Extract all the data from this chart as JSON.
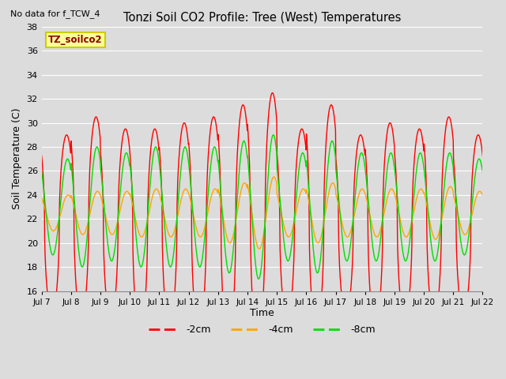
{
  "title": "Tonzi Soil CO2 Profile: Tree (West) Temperatures",
  "subtitle": "No data for f_TCW_4",
  "ylabel": "Soil Temperature (C)",
  "xlabel": "Time",
  "legend_label": "TZ_soilco2",
  "ylim": [
    16,
    38
  ],
  "yticks": [
    16,
    18,
    20,
    22,
    24,
    26,
    28,
    30,
    32,
    34,
    36,
    38
  ],
  "xtick_labels": [
    "Jul 7",
    "Jul 8",
    "Jul 9",
    "Jul 10",
    "Jul 11",
    "Jul 12",
    "Jul 13",
    "Jul 14",
    "Jul 15",
    "Jul 16",
    "Jul 17",
    "Jul 18",
    "Jul 19",
    "Jul 20",
    "Jul 21",
    "Jul 22"
  ],
  "series": {
    "-2cm": {
      "color": "#FF0000",
      "linewidth": 1.0
    },
    "-4cm": {
      "color": "#FFA500",
      "linewidth": 1.0
    },
    "-8cm": {
      "color": "#00DD00",
      "linewidth": 1.0
    }
  },
  "background_color": "#DCDCDC",
  "plot_bg_color": "#DCDCDC",
  "grid_color": "#FFFFFF",
  "legend_box_color": "#FFFF99",
  "legend_box_edge": "#CCCC00",
  "figsize": [
    6.4,
    4.8
  ],
  "dpi": 100,
  "n_days": 15,
  "pts_per_day": 96,
  "day_means_2cm": [
    21.5,
    22.0,
    21.5,
    21.0,
    21.5,
    21.5,
    21.5,
    22.0,
    21.5,
    22.0,
    21.5,
    21.5,
    21.5,
    22.0,
    21.5
  ],
  "day_amps_2cm": [
    7.5,
    8.5,
    8.0,
    8.5,
    8.5,
    9.0,
    10.0,
    10.5,
    8.0,
    9.5,
    7.5,
    8.5,
    8.0,
    8.5,
    7.5
  ],
  "day_amps_4cm": [
    1.5,
    1.8,
    1.8,
    2.0,
    2.0,
    2.0,
    2.5,
    3.0,
    2.0,
    2.5,
    2.0,
    2.0,
    2.0,
    2.2,
    1.8
  ],
  "day_amps_8cm": [
    4.0,
    5.0,
    4.5,
    5.0,
    5.0,
    5.0,
    5.5,
    6.0,
    4.5,
    5.5,
    4.5,
    4.5,
    4.5,
    4.5,
    4.0
  ],
  "mean_4cm": 22.5,
  "mean_8cm": 23.0
}
